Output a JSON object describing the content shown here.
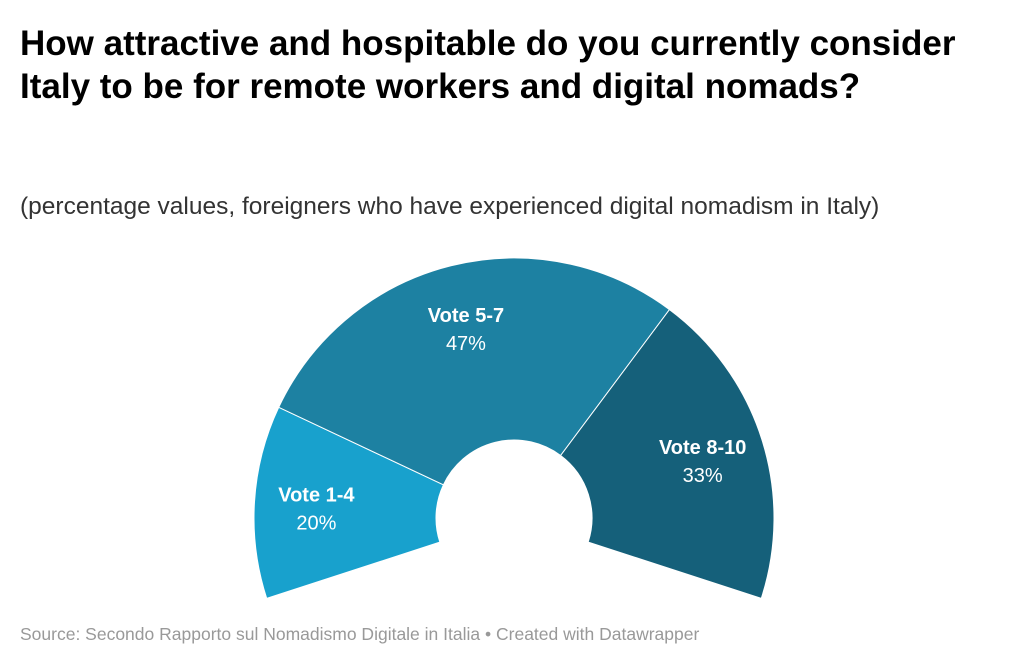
{
  "chart_data": {
    "type": "pie",
    "variant": "half-donut",
    "title": "How attractive and hospitable do you currently consider Italy to be for remote workers and digital nomads?",
    "subtitle": "(percentage values, foreigners who have experienced digital nomadism in Italy)",
    "categories": [
      "Vote 1-4",
      "Vote 5-7",
      "Vote 8-10"
    ],
    "values": [
      20,
      47,
      33
    ],
    "value_labels": [
      "20%",
      "47%",
      "33%"
    ],
    "colors": [
      "#18a1cd",
      "#1d81a2",
      "#15607a"
    ],
    "source": "Source: Secondo Rapporto sul Nomadismo Digitale in Italia",
    "credit": "Created with Datawrapper",
    "separator": "•"
  }
}
